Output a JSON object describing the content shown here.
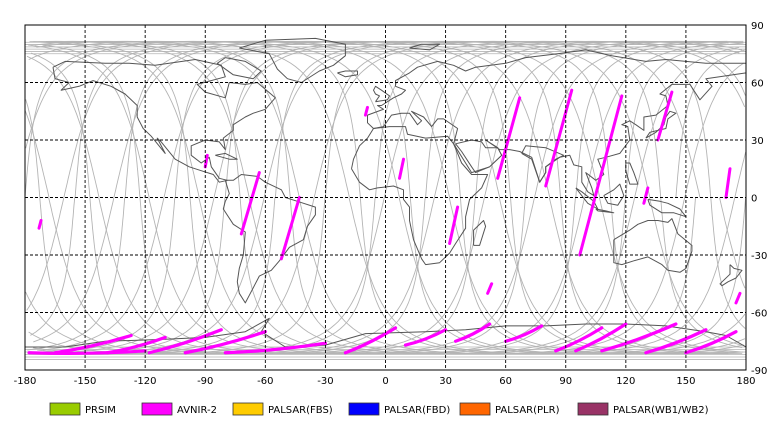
{
  "map": {
    "x_axis_labels": [
      "-180",
      "-150",
      "-120",
      "-90",
      "-60",
      "-30",
      "0",
      "30",
      "60",
      "90",
      "120",
      "150",
      "180"
    ],
    "y_axis_labels": [
      "90",
      "60",
      "30",
      "0",
      "-30",
      "-60",
      "-90"
    ],
    "colors": {
      "orbit": "#b4b4b4",
      "coast": "#555555",
      "grid": "#000000",
      "frame": "#000000"
    }
  },
  "legend": [
    {
      "label": "PRSIM",
      "color": "#99cc00"
    },
    {
      "label": "AVNIR-2",
      "color": "#ff00ff"
    },
    {
      "label": "PALSAR(FBS)",
      "color": "#ffcc00"
    },
    {
      "label": "PALSAR(FBD)",
      "color": "#0000ff"
    },
    {
      "label": "PALSAR(PLR)",
      "color": "#ff6600"
    },
    {
      "label": "PALSAR(WB1/WB2)",
      "color": "#993366"
    }
  ],
  "chart_data": {
    "type": "map",
    "xlim": [
      -180,
      180
    ],
    "ylim": [
      -90,
      90
    ],
    "grid": true,
    "avnir2_swaths": [
      {
        "start": [
          -172,
          -12
        ],
        "end": [
          -173,
          -16
        ]
      },
      {
        "start": [
          -89,
          22
        ],
        "end": [
          -90,
          16
        ]
      },
      {
        "start": [
          -63,
          13
        ],
        "end": [
          -72,
          -19
        ]
      },
      {
        "start": [
          -43,
          0
        ],
        "end": [
          -52,
          -32
        ]
      },
      {
        "start": [
          -9,
          47
        ],
        "end": [
          -10,
          43
        ]
      },
      {
        "start": [
          9,
          20
        ],
        "end": [
          7,
          10
        ]
      },
      {
        "start": [
          36,
          -5
        ],
        "end": [
          32,
          -24
        ]
      },
      {
        "start": [
          53,
          -45
        ],
        "end": [
          51,
          -50
        ]
      },
      {
        "start": [
          67,
          52
        ],
        "end": [
          56,
          10
        ]
      },
      {
        "start": [
          93,
          56
        ],
        "end": [
          80,
          6
        ]
      },
      {
        "start": [
          118,
          53
        ],
        "end": [
          97,
          -30
        ]
      },
      {
        "start": [
          143,
          55
        ],
        "end": [
          136,
          30
        ]
      },
      {
        "start": [
          131,
          5
        ],
        "end": [
          129,
          -3
        ]
      },
      {
        "start": [
          172,
          15
        ],
        "end": [
          170,
          0
        ]
      },
      {
        "start": [
          177,
          -50
        ],
        "end": [
          175,
          -55
        ]
      }
    ],
    "avnir2_polar_arcs": [
      {
        "lon0": -178,
        "lon1": -120,
        "lat0": -81,
        "lat1": -80
      },
      {
        "lon0": -165,
        "lon1": -127,
        "lat0": -81,
        "lat1": -72
      },
      {
        "lon0": -139,
        "lon1": -110,
        "lat0": -81,
        "lat1": -73
      },
      {
        "lon0": -118,
        "lon1": -82,
        "lat0": -81,
        "lat1": -69
      },
      {
        "lon0": -100,
        "lon1": -60,
        "lat0": -81,
        "lat1": -70
      },
      {
        "lon0": -80,
        "lon1": -30,
        "lat0": -81,
        "lat1": -76
      },
      {
        "lon0": -20,
        "lon1": 5,
        "lat0": -81,
        "lat1": -68
      },
      {
        "lon0": 10,
        "lon1": 30,
        "lat0": -77,
        "lat1": -69
      },
      {
        "lon0": 35,
        "lon1": 52,
        "lat0": -75,
        "lat1": -66
      },
      {
        "lon0": 60,
        "lon1": 78,
        "lat0": -75,
        "lat1": -67
      },
      {
        "lon0": 85,
        "lon1": 108,
        "lat0": -80,
        "lat1": -68
      },
      {
        "lon0": 95,
        "lon1": 120,
        "lat0": -80,
        "lat1": -66
      },
      {
        "lon0": 108,
        "lon1": 145,
        "lat0": -80,
        "lat1": -66
      },
      {
        "lon0": 130,
        "lon1": 160,
        "lat0": -81,
        "lat1": -69
      },
      {
        "lon0": 150,
        "lon1": 175,
        "lat0": -81,
        "lat1": -70
      }
    ],
    "orbit_tracks": {
      "count": 14,
      "spacing_deg": 25
    }
  }
}
